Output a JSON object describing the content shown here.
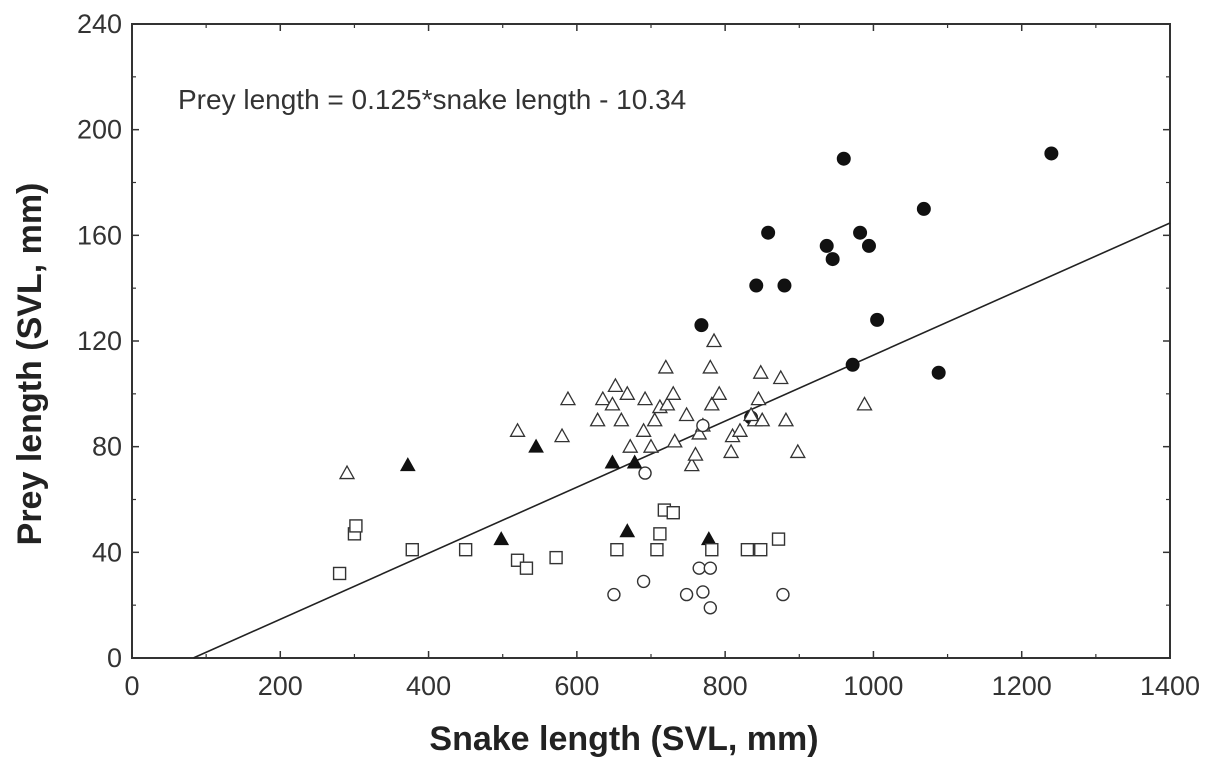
{
  "chart_data": {
    "type": "scatter",
    "xlabel": "Snake length (SVL, mm)",
    "ylabel": "Prey length (SVL, mm)",
    "annotation": "Prey length = 0.125*snake length - 10.34",
    "xlim": [
      0,
      1400
    ],
    "ylim": [
      0,
      240
    ],
    "x_ticks": [
      "0",
      "200",
      "400",
      "600",
      "800",
      "1000",
      "1200",
      "1400"
    ],
    "y_ticks": [
      "0",
      "40",
      "80",
      "120",
      "160",
      "200",
      "240"
    ],
    "grid": false,
    "regression": {
      "slope": 0.125,
      "intercept": -10.34,
      "x_range": [
        83,
        1400
      ]
    },
    "series": [
      {
        "marker": "filled-circle",
        "points": [
          [
            960,
            189
          ],
          [
            1240,
            191
          ],
          [
            1068,
            170
          ],
          [
            858,
            161
          ],
          [
            937,
            156
          ],
          [
            982,
            161
          ],
          [
            994,
            156
          ],
          [
            945,
            151
          ],
          [
            842,
            141
          ],
          [
            880,
            141
          ],
          [
            768,
            126
          ],
          [
            1005,
            128
          ],
          [
            972,
            111
          ],
          [
            1088,
            108
          ],
          [
            835,
            91
          ]
        ]
      },
      {
        "marker": "open-triangle",
        "points": [
          [
            290,
            70
          ],
          [
            520,
            86
          ],
          [
            580,
            84
          ],
          [
            588,
            98
          ],
          [
            628,
            90
          ],
          [
            635,
            98
          ],
          [
            648,
            96
          ],
          [
            652,
            103
          ],
          [
            660,
            90
          ],
          [
            668,
            100
          ],
          [
            672,
            80
          ],
          [
            690,
            86
          ],
          [
            692,
            98
          ],
          [
            700,
            80
          ],
          [
            705,
            90
          ],
          [
            712,
            95
          ],
          [
            720,
            110
          ],
          [
            722,
            96
          ],
          [
            730,
            100
          ],
          [
            732,
            82
          ],
          [
            748,
            92
          ],
          [
            755,
            73
          ],
          [
            760,
            77
          ],
          [
            765,
            85
          ],
          [
            770,
            88
          ],
          [
            780,
            110
          ],
          [
            782,
            96
          ],
          [
            785,
            120
          ],
          [
            792,
            100
          ],
          [
            808,
            78
          ],
          [
            810,
            84
          ],
          [
            820,
            86
          ],
          [
            840,
            90
          ],
          [
            845,
            98
          ],
          [
            848,
            108
          ],
          [
            850,
            90
          ],
          [
            875,
            106
          ],
          [
            882,
            90
          ],
          [
            898,
            78
          ],
          [
            988,
            96
          ],
          [
            835,
            92
          ]
        ]
      },
      {
        "marker": "filled-triangle",
        "points": [
          [
            372,
            73
          ],
          [
            498,
            45
          ],
          [
            545,
            80
          ],
          [
            648,
            74
          ],
          [
            678,
            74
          ],
          [
            668,
            48
          ],
          [
            778,
            45
          ]
        ]
      },
      {
        "marker": "open-square",
        "points": [
          [
            280,
            32
          ],
          [
            300,
            47
          ],
          [
            302,
            50
          ],
          [
            378,
            41
          ],
          [
            450,
            41
          ],
          [
            520,
            37
          ],
          [
            532,
            34
          ],
          [
            572,
            38
          ],
          [
            654,
            41
          ],
          [
            708,
            41
          ],
          [
            712,
            47
          ],
          [
            718,
            56
          ],
          [
            730,
            55
          ],
          [
            782,
            41
          ],
          [
            830,
            41
          ],
          [
            848,
            41
          ],
          [
            872,
            45
          ]
        ]
      },
      {
        "marker": "open-circle",
        "points": [
          [
            650,
            24
          ],
          [
            690,
            29
          ],
          [
            692,
            70
          ],
          [
            748,
            24
          ],
          [
            765,
            34
          ],
          [
            770,
            88
          ],
          [
            770,
            25
          ],
          [
            780,
            34
          ],
          [
            780,
            19
          ],
          [
            878,
            24
          ]
        ]
      }
    ]
  }
}
